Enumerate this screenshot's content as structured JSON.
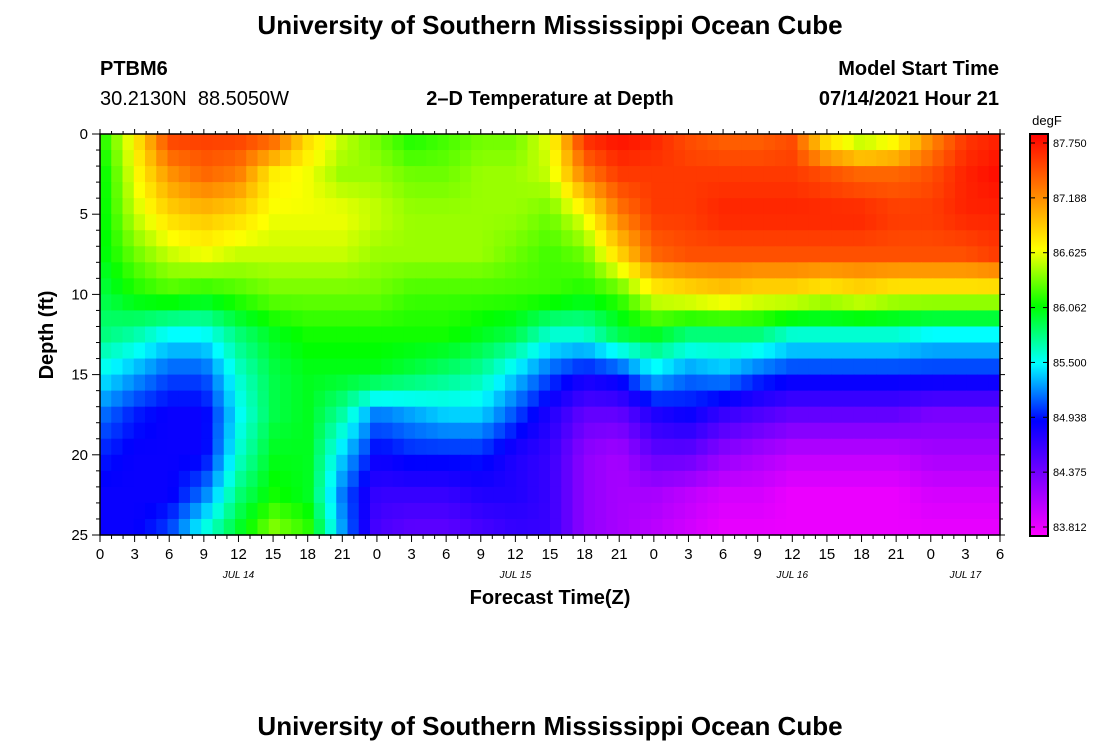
{
  "page": {
    "title": "University of Southern Mississippi Ocean Cube",
    "station": "PTBM6",
    "coordinates": "30.2130N  88.5050W",
    "chart_title": "2–D Temperature at Depth",
    "model_start_label": "Model Start Time",
    "model_start_value": "07/14/2021 Hour 21",
    "footer_title": "University of Southern Mississippi Ocean Cube"
  },
  "chart_data": {
    "type": "heatmap",
    "title": "2–D Temperature at Depth",
    "xlabel": "Forecast Time(Z)",
    "ylabel": "Depth (ft)",
    "x_range_hours": [
      0,
      78
    ],
    "y_range": [
      0,
      25
    ],
    "x_ticks": [
      {
        "hour": 0,
        "label": "0"
      },
      {
        "hour": 3,
        "label": "3"
      },
      {
        "hour": 6,
        "label": "6"
      },
      {
        "hour": 9,
        "label": "9"
      },
      {
        "hour": 12,
        "label": "12"
      },
      {
        "hour": 15,
        "label": "15"
      },
      {
        "hour": 18,
        "label": "18"
      },
      {
        "hour": 21,
        "label": "21"
      },
      {
        "hour": 24,
        "label": "0"
      },
      {
        "hour": 27,
        "label": "3"
      },
      {
        "hour": 30,
        "label": "6"
      },
      {
        "hour": 33,
        "label": "9"
      },
      {
        "hour": 36,
        "label": "12"
      },
      {
        "hour": 39,
        "label": "15"
      },
      {
        "hour": 42,
        "label": "18"
      },
      {
        "hour": 45,
        "label": "21"
      },
      {
        "hour": 48,
        "label": "0"
      },
      {
        "hour": 51,
        "label": "3"
      },
      {
        "hour": 54,
        "label": "6"
      },
      {
        "hour": 57,
        "label": "9"
      },
      {
        "hour": 60,
        "label": "12"
      },
      {
        "hour": 63,
        "label": "15"
      },
      {
        "hour": 66,
        "label": "18"
      },
      {
        "hour": 69,
        "label": "21"
      },
      {
        "hour": 72,
        "label": "0"
      },
      {
        "hour": 75,
        "label": "3"
      },
      {
        "hour": 78,
        "label": "6"
      }
    ],
    "date_labels": [
      {
        "hour": 12,
        "label": "JUL 14"
      },
      {
        "hour": 36,
        "label": "JUL 15"
      },
      {
        "hour": 60,
        "label": "JUL 16"
      },
      {
        "hour": 75,
        "label": "JUL 17"
      }
    ],
    "y_ticks": [
      0,
      5,
      10,
      15,
      20,
      25
    ],
    "colorbar": {
      "unit": "degF",
      "range": [
        83.812,
        87.75
      ],
      "ticks": [
        "87.750",
        "87.188",
        "86.625",
        "86.062",
        "85.500",
        "84.938",
        "84.375",
        "83.812"
      ],
      "colors": [
        "#ff00ff",
        "#8000ff",
        "#0000ff",
        "#00ffff",
        "#00ff00",
        "#ffff00",
        "#ff8000",
        "#ff0000"
      ]
    },
    "grid": false,
    "x_hours": [
      0,
      3,
      6,
      9,
      12,
      15,
      18,
      21,
      24,
      27,
      30,
      33,
      36,
      39,
      42,
      45,
      48,
      51,
      54,
      57,
      60,
      63,
      66,
      69,
      72,
      75,
      78
    ],
    "depths": [
      0,
      2.5,
      5,
      7.5,
      10,
      12.5,
      15,
      17.5,
      20,
      22.5,
      25
    ],
    "values": [
      [
        86.1,
        86.7,
        87.5,
        87.5,
        87.5,
        87.4,
        86.8,
        86.5,
        86.3,
        86.1,
        86.2,
        86.3,
        86.3,
        86.6,
        87.6,
        87.7,
        87.6,
        87.4,
        87.3,
        87.3,
        87.4,
        86.6,
        86.3,
        86.5,
        87.1,
        87.5,
        87.6
      ],
      [
        86.0,
        86.6,
        87.1,
        87.3,
        87.2,
        86.7,
        86.6,
        86.4,
        86.4,
        86.3,
        86.3,
        86.4,
        86.4,
        86.5,
        87.2,
        87.5,
        87.5,
        87.5,
        87.5,
        87.5,
        87.5,
        87.4,
        87.3,
        87.3,
        87.4,
        87.6,
        87.7
      ],
      [
        86.0,
        86.5,
        86.8,
        86.9,
        86.8,
        86.6,
        86.6,
        86.6,
        86.5,
        86.4,
        86.4,
        86.4,
        86.4,
        86.3,
        86.6,
        87.2,
        87.5,
        87.5,
        87.6,
        87.6,
        87.6,
        87.6,
        87.6,
        87.5,
        87.5,
        87.6,
        87.6
      ],
      [
        86.0,
        86.3,
        86.5,
        86.6,
        86.5,
        86.5,
        86.5,
        86.5,
        86.4,
        86.4,
        86.4,
        86.4,
        86.3,
        86.2,
        86.3,
        86.8,
        87.3,
        87.4,
        87.4,
        87.4,
        87.4,
        87.4,
        87.4,
        87.4,
        87.4,
        87.4,
        87.5
      ],
      [
        85.9,
        86.1,
        86.2,
        86.1,
        86.2,
        86.3,
        86.3,
        86.3,
        86.3,
        86.2,
        86.2,
        86.2,
        86.2,
        86.2,
        86.1,
        86.2,
        86.6,
        86.7,
        86.8,
        86.7,
        86.7,
        86.6,
        86.7,
        86.6,
        86.6,
        86.6,
        86.6
      ],
      [
        85.8,
        85.7,
        85.5,
        85.5,
        85.8,
        86.0,
        86.1,
        86.1,
        86.1,
        86.1,
        86.1,
        86.0,
        85.9,
        85.6,
        85.6,
        85.9,
        86.0,
        85.8,
        85.8,
        85.8,
        85.6,
        85.6,
        85.6,
        85.6,
        85.5,
        85.5,
        85.5
      ],
      [
        85.5,
        85.3,
        85.1,
        85.1,
        85.6,
        85.9,
        86.0,
        86.0,
        86.0,
        85.9,
        85.8,
        85.7,
        85.4,
        85.1,
        84.9,
        85.0,
        85.4,
        85.2,
        85.3,
        85.1,
        85.0,
        85.0,
        85.0,
        85.0,
        85.0,
        85.0,
        85.0
      ],
      [
        85.2,
        85.0,
        84.9,
        84.9,
        85.5,
        85.9,
        86.0,
        85.7,
        85.2,
        85.3,
        85.4,
        85.4,
        85.1,
        84.8,
        84.5,
        84.5,
        84.8,
        84.9,
        84.7,
        84.6,
        84.5,
        84.5,
        84.5,
        84.5,
        84.4,
        84.4,
        84.4
      ],
      [
        85.0,
        84.9,
        84.9,
        84.9,
        85.6,
        86.0,
        86.0,
        85.4,
        84.9,
        85.0,
        85.0,
        85.0,
        84.8,
        84.7,
        84.3,
        84.2,
        84.5,
        84.5,
        84.3,
        84.2,
        84.1,
        84.1,
        84.1,
        84.1,
        84.2,
        84.2,
        84.2
      ],
      [
        84.9,
        84.9,
        84.9,
        85.2,
        85.8,
        86.1,
        86.0,
        85.2,
        84.7,
        84.7,
        84.7,
        84.8,
        84.8,
        84.7,
        84.3,
        84.2,
        84.2,
        84.1,
        84.0,
        84.0,
        83.9,
        83.9,
        83.9,
        83.9,
        84.0,
        84.0,
        84.0
      ],
      [
        84.9,
        84.9,
        85.1,
        85.6,
        86.0,
        86.4,
        86.2,
        85.3,
        84.6,
        84.5,
        84.5,
        84.6,
        84.7,
        84.7,
        84.3,
        84.2,
        84.1,
        84.0,
        83.9,
        83.9,
        83.9,
        83.9,
        83.9,
        83.9,
        83.9,
        83.9,
        83.9
      ]
    ]
  }
}
